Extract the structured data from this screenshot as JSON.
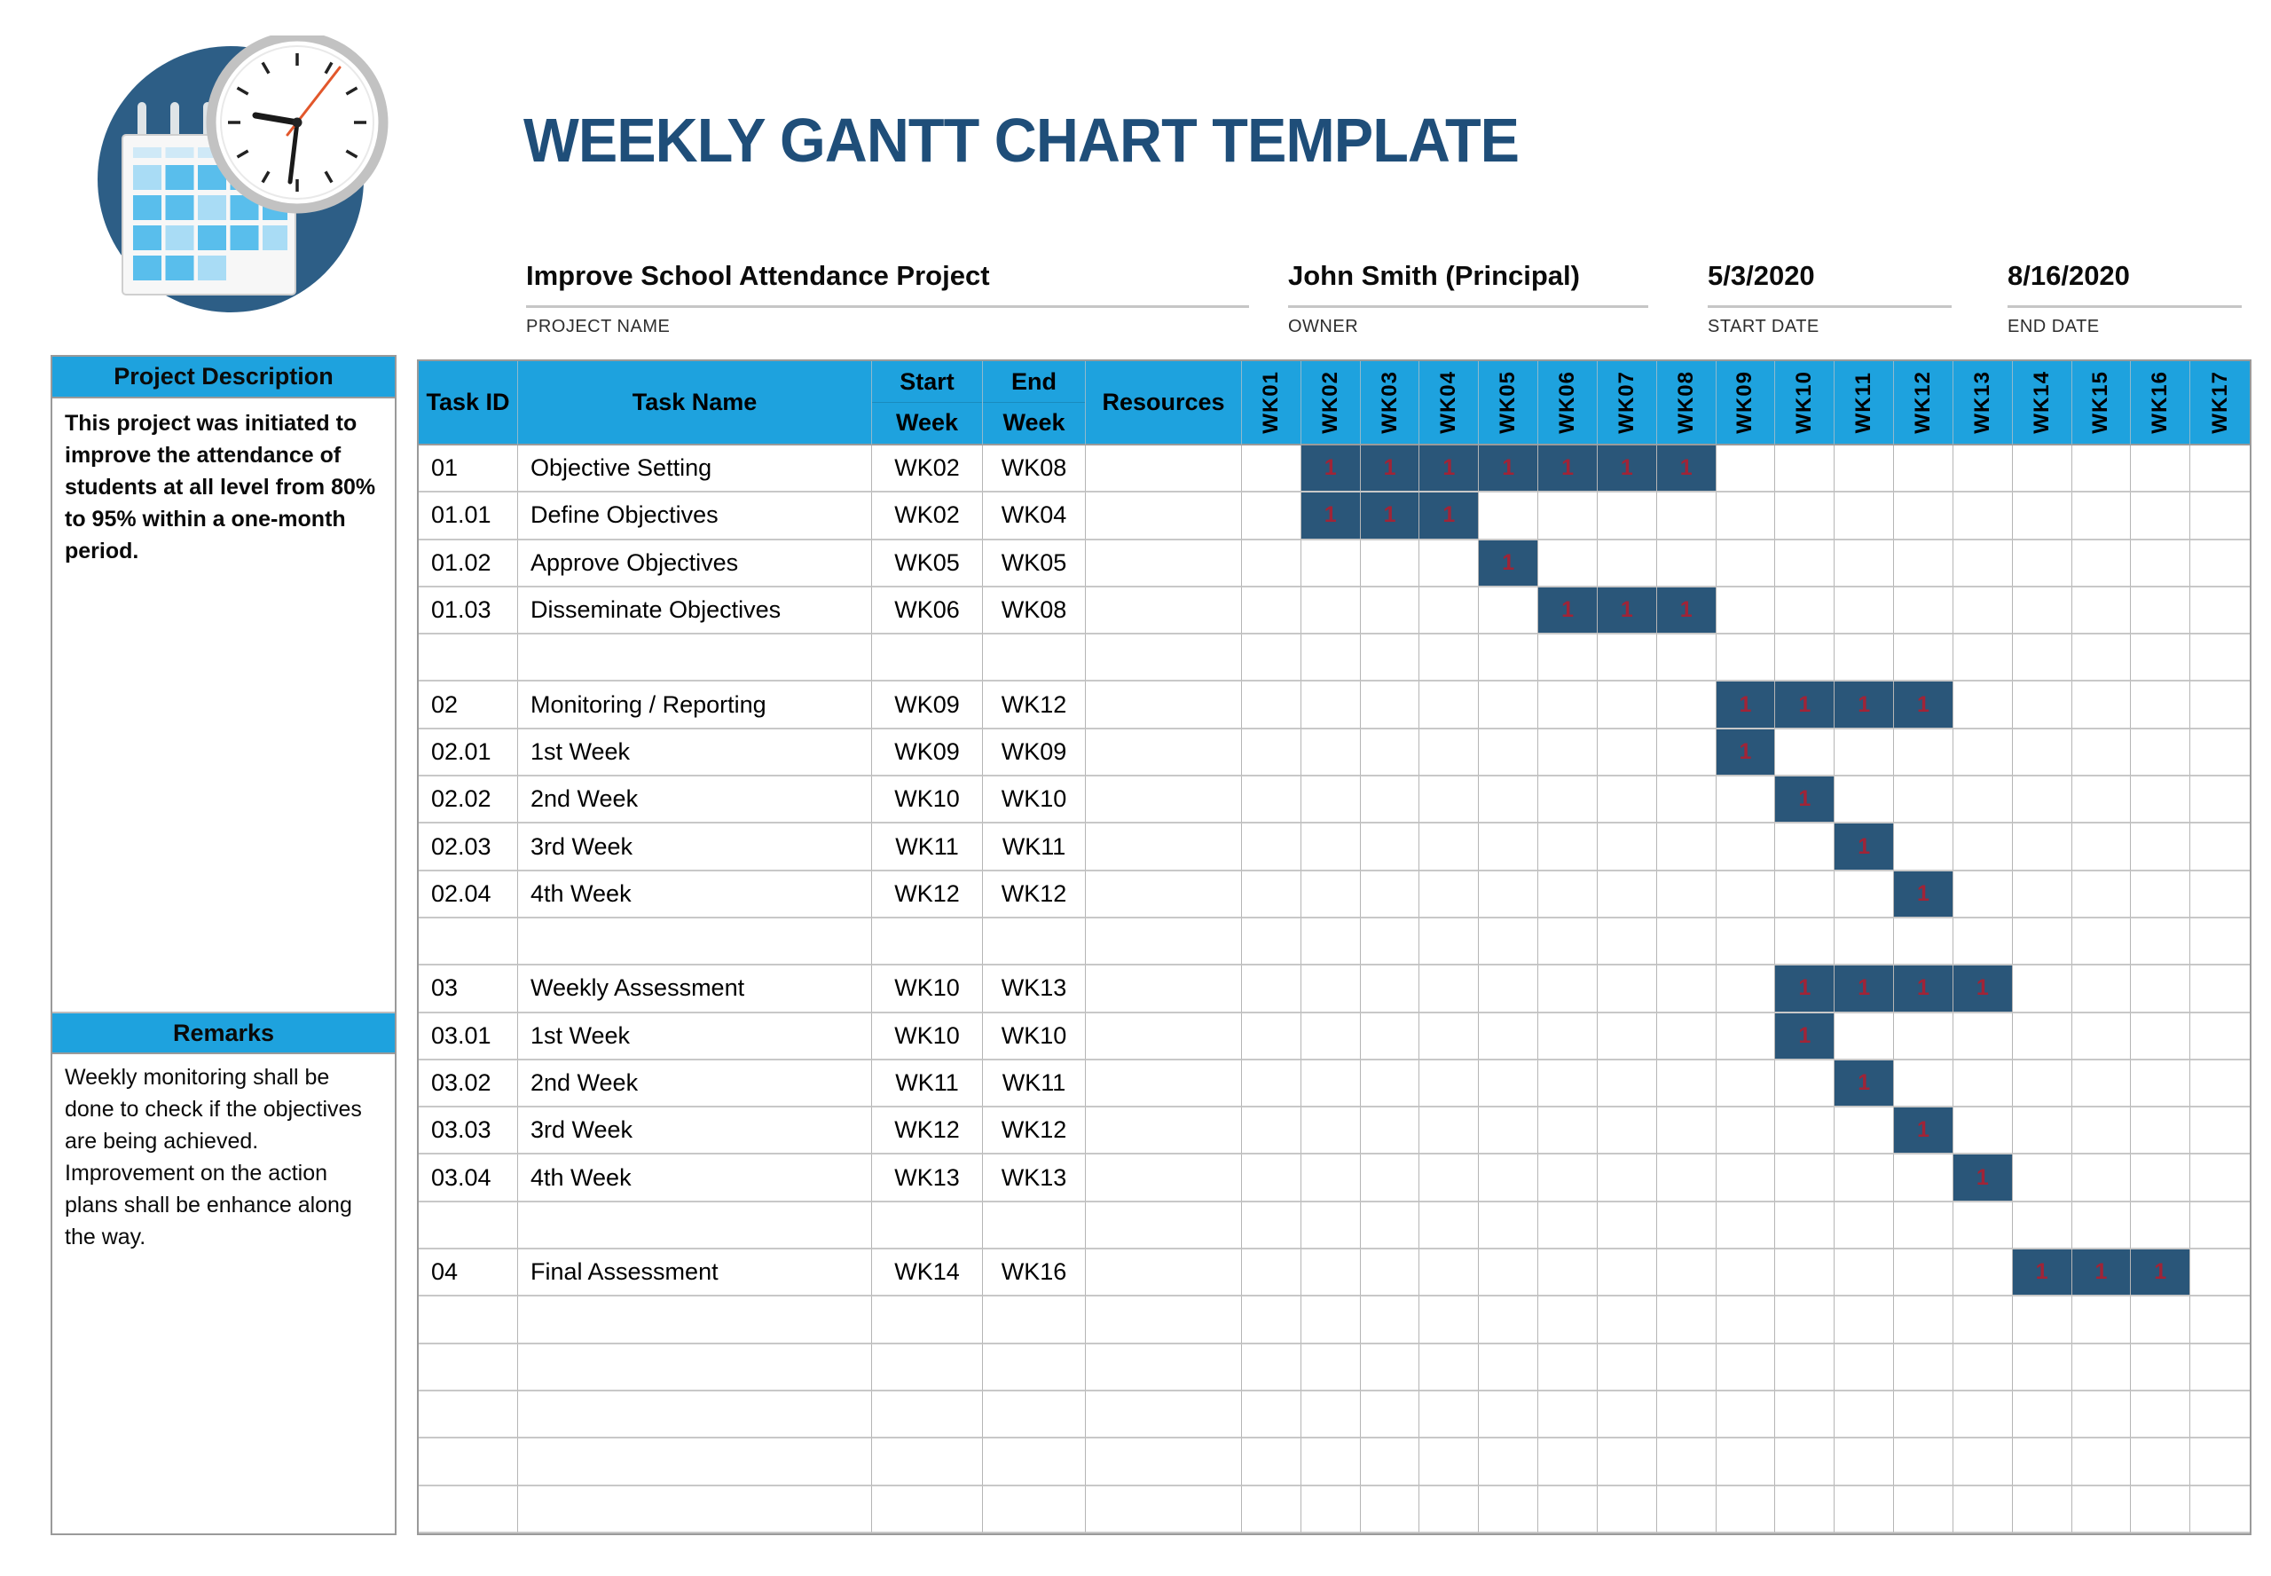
{
  "title": "WEEKLY GANTT CHART TEMPLATE",
  "colors": {
    "accent_cyan": "#1EA2DE",
    "title_blue": "#1F4E79",
    "bar_navy": "#2A5679",
    "bar_value_red": "#A02437"
  },
  "header_fields": {
    "project_name": {
      "value": "Improve School Attendance Project",
      "label": "PROJECT NAME"
    },
    "owner": {
      "value": "John Smith (Principal)",
      "label": "OWNER"
    },
    "start_date": {
      "value": "5/3/2020",
      "label": "START DATE"
    },
    "end_date": {
      "value": "8/16/2020",
      "label": "END DATE"
    }
  },
  "sidebar": {
    "description_header": "Project Description",
    "description_text": "This project was initiated to improve the attendance of students at all level from 80% to 95% within a one-month period.",
    "remarks_header": "Remarks",
    "remarks_lines": [
      "Weekly monitoring shall be done to check if the objectives are being achieved.",
      "Improvement on the action plans shall be enhance along the way."
    ]
  },
  "chart_data": {
    "type": "gantt",
    "title": "WEEKLY GANTT CHART TEMPLATE",
    "columns": {
      "task_id": "Task ID",
      "task_name": "Task Name",
      "start_week": [
        "Start",
        "Week"
      ],
      "end_week": [
        "End",
        "Week"
      ],
      "resources": "Resources"
    },
    "weeks": [
      "WK01",
      "WK02",
      "WK03",
      "WK04",
      "WK05",
      "WK06",
      "WK07",
      "WK08",
      "WK09",
      "WK10",
      "WK11",
      "WK12",
      "WK13",
      "WK14",
      "WK15",
      "WK16",
      "WK17"
    ],
    "bar_label": "1",
    "tasks": [
      {
        "id": "01",
        "name": "Objective Setting",
        "start": "WK02",
        "end": "WK08"
      },
      {
        "id": "01.01",
        "name": "Define Objectives",
        "start": "WK02",
        "end": "WK04"
      },
      {
        "id": "01.02",
        "name": "Approve Objectives",
        "start": "WK05",
        "end": "WK05"
      },
      {
        "id": "01.03",
        "name": "Disseminate Objectives",
        "start": "WK06",
        "end": "WK08"
      },
      {
        "id": "",
        "name": "",
        "start": "",
        "end": ""
      },
      {
        "id": "02",
        "name": "Monitoring / Reporting",
        "start": "WK09",
        "end": "WK12"
      },
      {
        "id": "02.01",
        "name": "1st Week",
        "start": "WK09",
        "end": "WK09"
      },
      {
        "id": "02.02",
        "name": "2nd Week",
        "start": "WK10",
        "end": "WK10"
      },
      {
        "id": "02.03",
        "name": "3rd Week",
        "start": "WK11",
        "end": "WK11"
      },
      {
        "id": "02.04",
        "name": "4th Week",
        "start": "WK12",
        "end": "WK12"
      },
      {
        "id": "",
        "name": "",
        "start": "",
        "end": ""
      },
      {
        "id": "03",
        "name": "Weekly Assessment",
        "start": "WK10",
        "end": "WK13"
      },
      {
        "id": "03.01",
        "name": "1st Week",
        "start": "WK10",
        "end": "WK10"
      },
      {
        "id": "03.02",
        "name": "2nd Week",
        "start": "WK11",
        "end": "WK11"
      },
      {
        "id": "03.03",
        "name": "3rd Week",
        "start": "WK12",
        "end": "WK12"
      },
      {
        "id": "03.04",
        "name": "4th Week",
        "start": "WK13",
        "end": "WK13"
      },
      {
        "id": "",
        "name": "",
        "start": "",
        "end": ""
      },
      {
        "id": "04",
        "name": "Final Assessment",
        "start": "WK14",
        "end": "WK16"
      },
      {
        "id": "",
        "name": "",
        "start": "",
        "end": ""
      },
      {
        "id": "",
        "name": "",
        "start": "",
        "end": ""
      },
      {
        "id": "",
        "name": "",
        "start": "",
        "end": ""
      },
      {
        "id": "",
        "name": "",
        "start": "",
        "end": ""
      },
      {
        "id": "",
        "name": "",
        "start": "",
        "end": ""
      }
    ]
  }
}
